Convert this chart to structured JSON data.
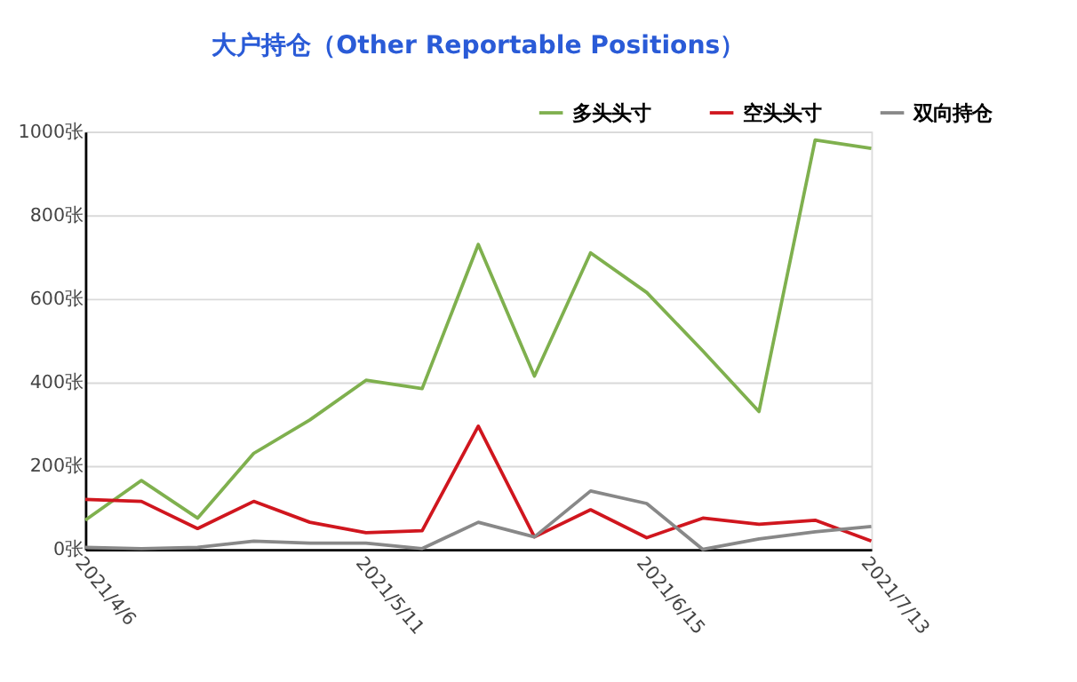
{
  "chart_data": {
    "type": "line",
    "title": "大户持仓（Other Reportable Positions）",
    "categories": [
      "2021/4/6",
      null,
      null,
      null,
      null,
      "2021/5/11",
      null,
      null,
      null,
      null,
      "2021/6/15",
      null,
      null,
      null,
      "2021/7/13"
    ],
    "series": [
      {
        "name": "多头头寸",
        "color": "#7fb04e",
        "values": [
          70,
          165,
          75,
          230,
          310,
          405,
          385,
          730,
          415,
          710,
          615,
          475,
          330,
          980,
          960
        ]
      },
      {
        "name": "空头头寸",
        "color": "#d0161e",
        "values": [
          120,
          115,
          50,
          115,
          65,
          40,
          45,
          295,
          30,
          95,
          28,
          75,
          60,
          70,
          20
        ]
      },
      {
        "name": "双向持仓",
        "color": "#888888",
        "values": [
          5,
          2,
          5,
          20,
          15,
          15,
          2,
          65,
          30,
          140,
          110,
          0,
          25,
          42,
          55
        ]
      }
    ],
    "ylim": [
      0,
      1000
    ],
    "yticks": [
      {
        "value": 0,
        "label": "0张"
      },
      {
        "value": 200,
        "label": "200张"
      },
      {
        "value": 400,
        "label": "400张"
      },
      {
        "value": 600,
        "label": "600张"
      },
      {
        "value": 800,
        "label": "800张"
      },
      {
        "value": 1000,
        "label": "1000张"
      }
    ],
    "grid": "y",
    "legend": "top right",
    "marker": "none",
    "line_style": "solid"
  }
}
